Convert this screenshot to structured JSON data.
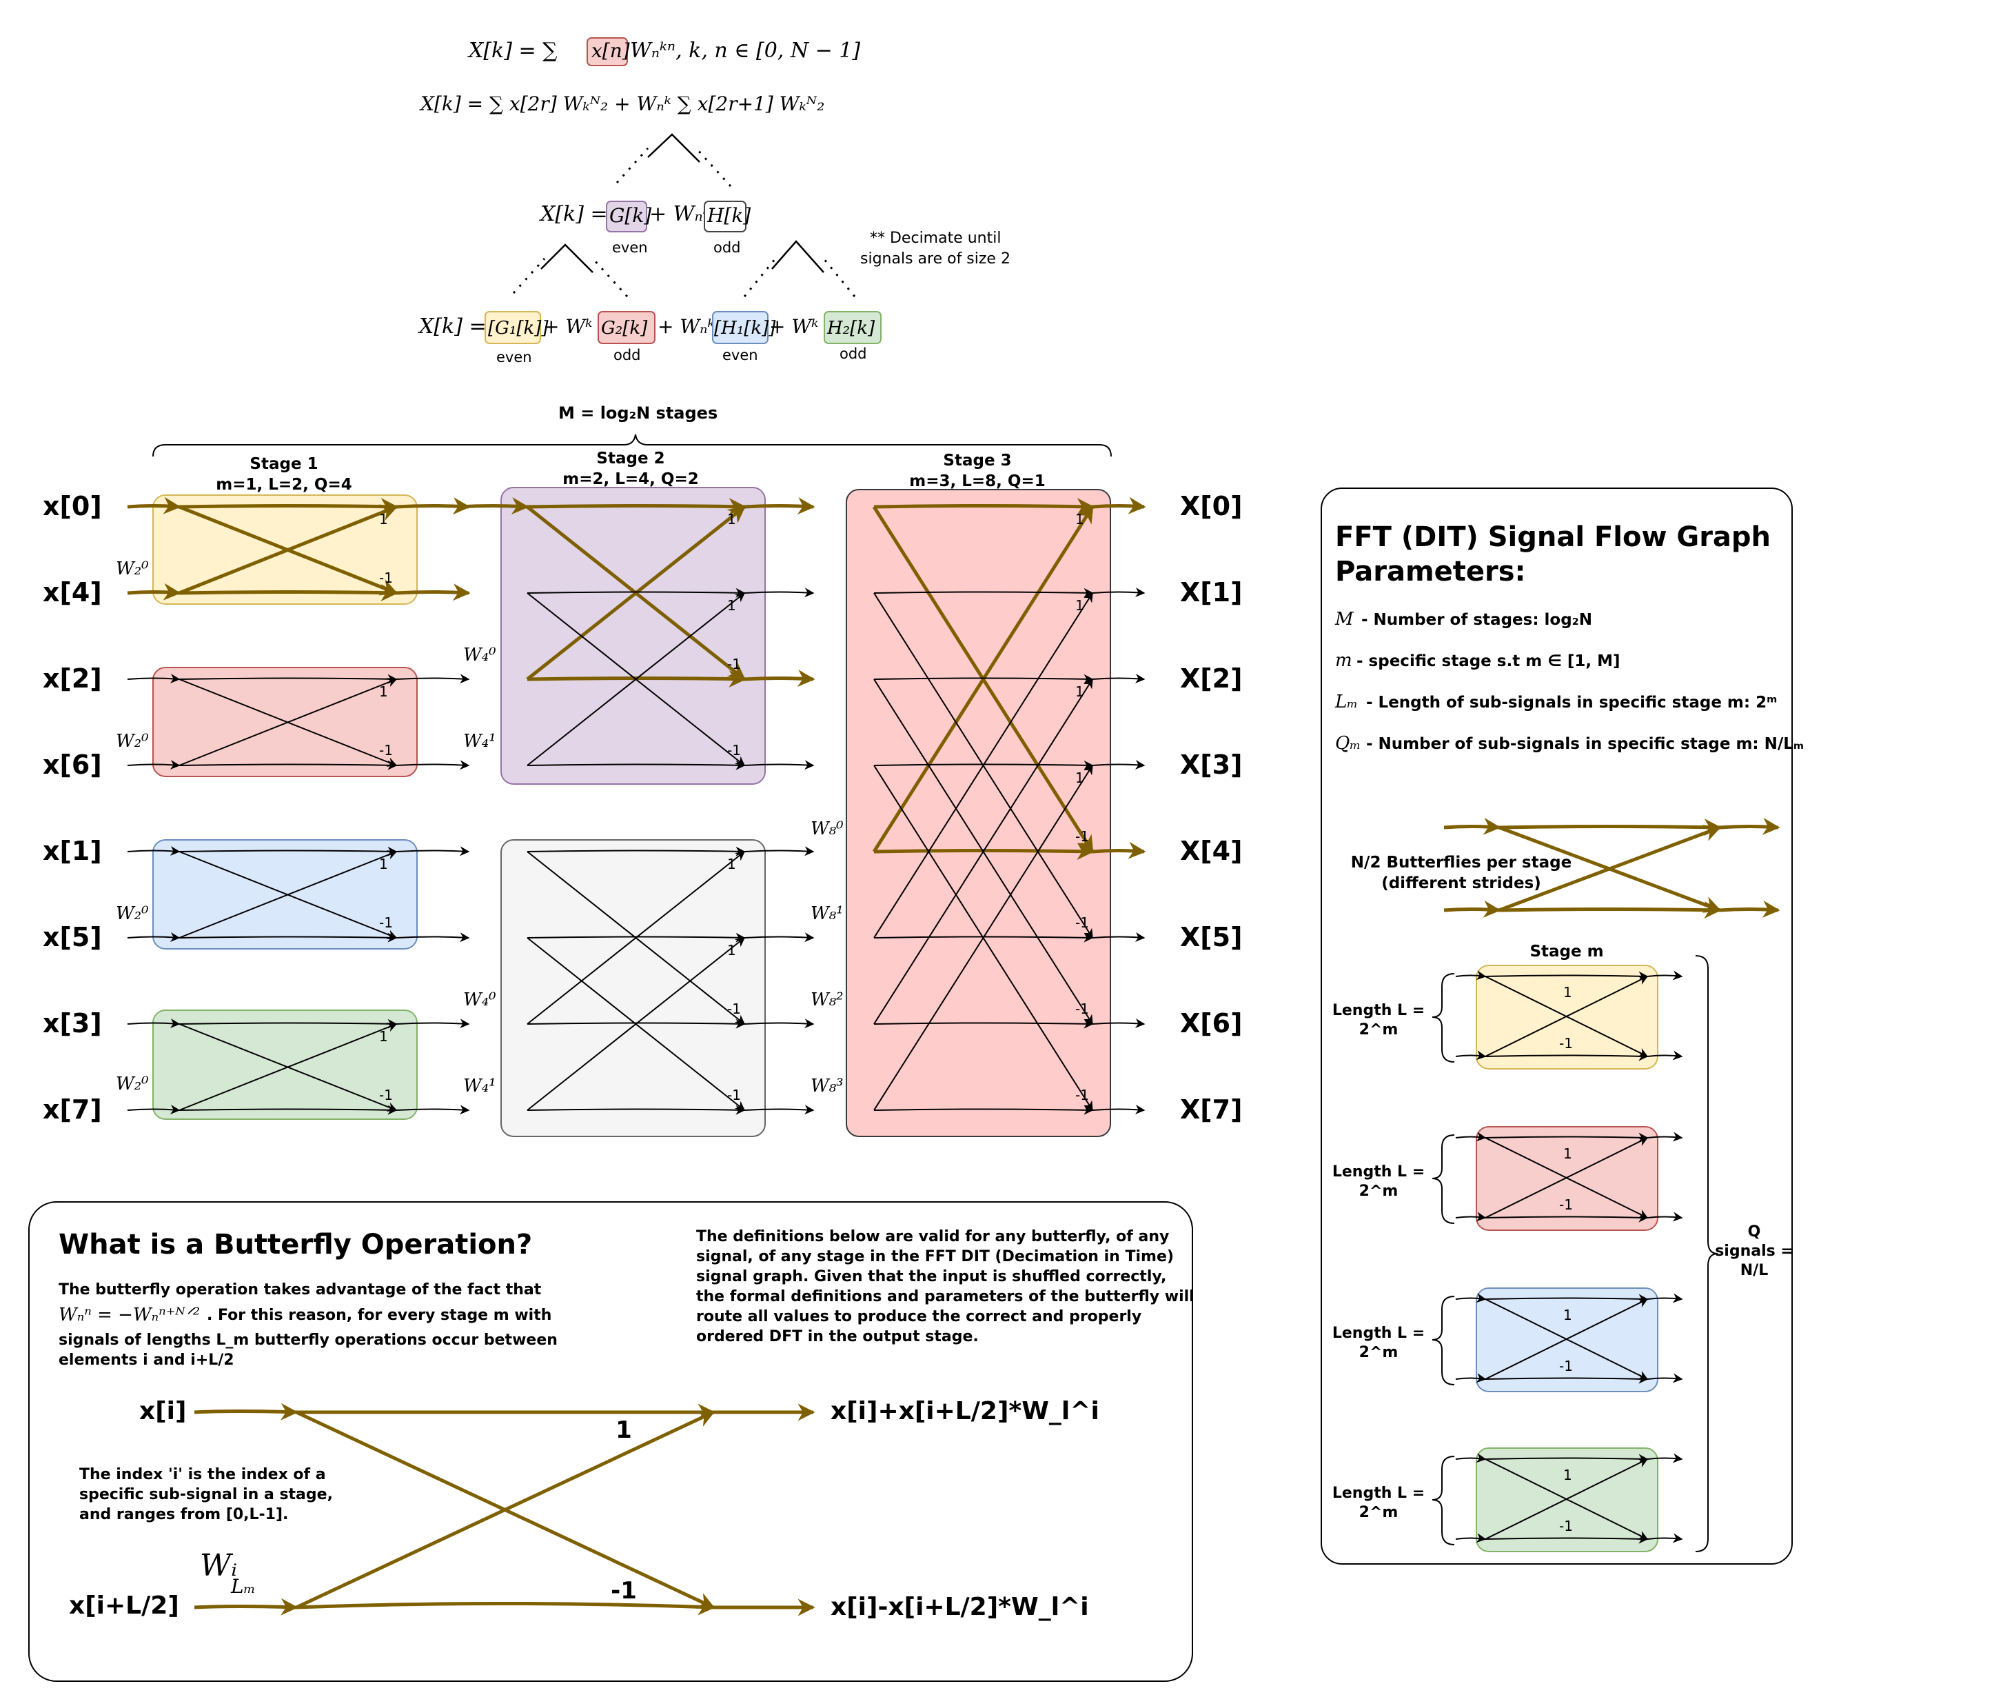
{
  "formulas": {
    "dft": "X[k] = ∑ₙ₌₀ᴺ⁻¹ x[n] Wₙᵏⁿ, k, n ∈ [0, N − 1]",
    "dft_prefix": "X[k] = ∑",
    "dft_xn": "x[n]",
    "dft_suffix": "Wₙᵏⁿ, k, n ∈ [0, N − 1]",
    "split": "X[k] = ∑ x[2r] Wₖᴺ₂ + Wₙᵏ ∑ x[2r+1] Wₖᴺ₂",
    "gh_prefix": "X[k] =",
    "gh_g": "G[k]",
    "gh_mid": "+ Wₙᵏ",
    "gh_h": "H[k]",
    "even": "even",
    "odd": "odd",
    "level2_prefix": "X[k] =",
    "g1": "[G₁[k]]",
    "plus_wn2": "+ Wᵏ",
    "g2": "G₂[k]",
    "plus_wn": "+ Wₙᵏ",
    "h1": "[H₁[k]]",
    "h2": "H₂[k]",
    "note_line1": "** Decimate until",
    "note_line2": "signals are of size 2",
    "stages_label": "M = log₂N stages"
  },
  "stages": [
    {
      "title": "Stage 1",
      "params": "m=1, L=2, Q=4"
    },
    {
      "title": "Stage 2",
      "params": "m=2, L=4, Q=2"
    },
    {
      "title": "Stage 3",
      "params": "m=3, L=8, Q=1"
    }
  ],
  "inputs": [
    "x[0]",
    "x[4]",
    "x[2]",
    "x[6]",
    "x[1]",
    "x[5]",
    "x[3]",
    "x[7]"
  ],
  "outputs": [
    "X[0]",
    "X[1]",
    "X[2]",
    "X[3]",
    "X[4]",
    "X[5]",
    "X[6]",
    "X[7]"
  ],
  "twiddles": {
    "w2_0": "W₂⁰",
    "w4_0": "W₄⁰",
    "w4_1": "W₄¹",
    "w8_0": "W₈⁰",
    "w8_1": "W₈¹",
    "w8_2": "W₈²",
    "w8_3": "W₈³",
    "wlm": "Wᵢ Lₘ"
  },
  "weights": {
    "plus": "1",
    "minus": "-1"
  },
  "params_panel": {
    "title_line1": "FFT (DIT) Signal Flow Graph",
    "title_line2": "Parameters:",
    "def_M_sym": "M",
    "def_M_text": "- Number of stages: log₂N",
    "def_m_sym": "m",
    "def_m_text": "- specific stage s.t m ∈ [1, M]",
    "def_L_sym": "Lₘ",
    "def_L_text": "- Length of sub-signals in specific stage m: 2ᵐ",
    "def_Q_sym": "Qₘ",
    "def_Q_text": "- Number of sub-signals in specific stage m: N/Lₘ",
    "butterflies_line1": "N/2 Butterflies per stage",
    "butterflies_line2": "(different strides)",
    "stage_m": "Stage m",
    "length_line1": "Length L =",
    "length_line2": "2^m",
    "q_line1": "Q",
    "q_line2": "signals =",
    "q_line3": "N/L"
  },
  "butterfly_panel": {
    "title": "What is a Butterfly Operation?",
    "desc_line1": "The butterfly operation takes advantage of the fact that",
    "desc_line2_math": "Wₙⁿ = −Wₙⁿ⁺ᴺᐟ²",
    "desc_line2_text": ". For this reason, for every stage m with",
    "desc_line3": "signals of lengths L_m butterfly operations occur between",
    "desc_line4": "elements i and i+L/2",
    "def_line1": "The definitions below are valid for any butterfly, of any",
    "def_line2": "signal, of any stage in the FFT DIT (Decimation in Time)",
    "def_line3": "signal graph. Given that the input is shuffled correctly,",
    "def_line4": "the formal definitions and parameters of the butterfly will",
    "def_line5": "route all values to produce the correct and properly",
    "def_line6": "ordered DFT in the output stage.",
    "index_line1": "The index 'i' is the index of a",
    "index_line2": "specific sub-signal in a stage,",
    "index_line3": "and ranges from [0,L-1].",
    "in_top": "x[i]",
    "in_bottom": "x[i+L/2]",
    "out_top": "x[i]+x[i+L/2]*W_l^i",
    "out_bottom": "x[i]-x[i+L/2]*W_l^i",
    "w_label": "Wᵢ",
    "w_sub": "Lₘ"
  },
  "colors": {
    "yellow_fill": "#fff2cc",
    "yellow_stroke": "#d6b656",
    "red_fill": "#f8cecc",
    "red_stroke": "#b85450",
    "blue_fill": "#dae8fc",
    "blue_stroke": "#6c8ebf",
    "green_fill": "#d5e8d4",
    "green_stroke": "#82b366",
    "purple_fill": "#e1d5e7",
    "purple_stroke": "#9673a6",
    "gray_fill": "#f5f5f5",
    "gray_stroke": "#666666",
    "pink_fill": "#ffcccc",
    "highlight": "#7f6000"
  }
}
